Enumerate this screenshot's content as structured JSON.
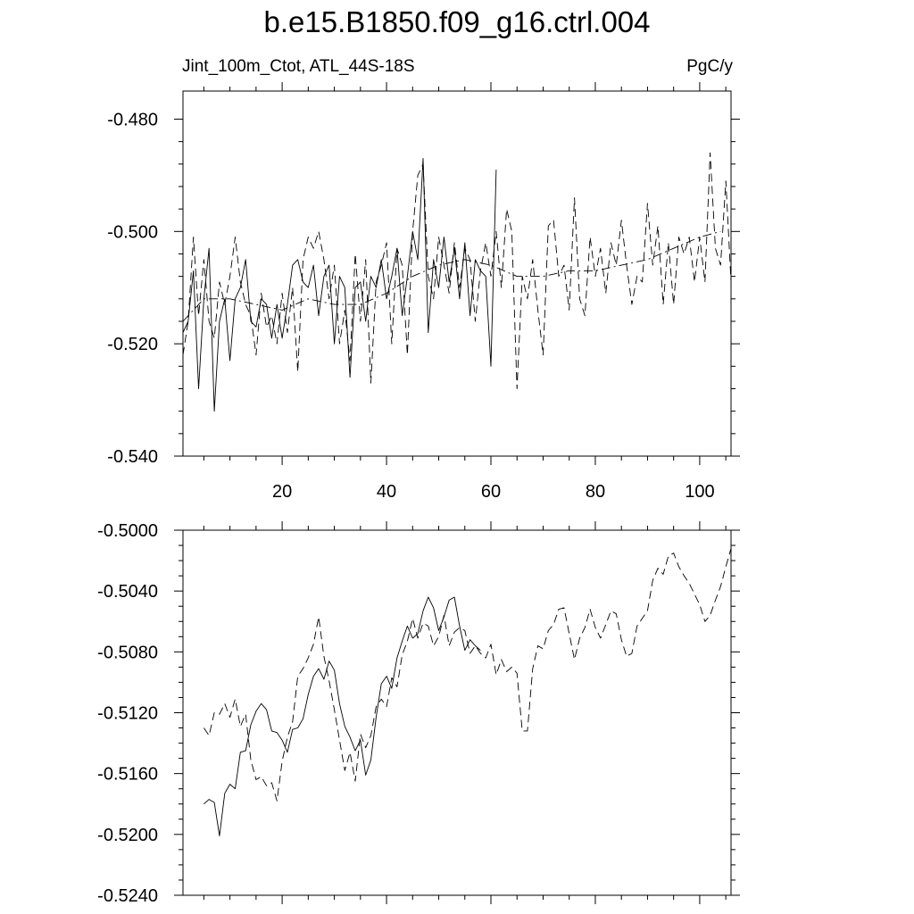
{
  "title": "b.e15.B1850.f09_g16.ctrl.004",
  "subtitle_left": "Jint_100m_Ctot, ATL_44S-18S",
  "subtitle_right": "PgC/y",
  "chart_data": [
    {
      "type": "line",
      "panel": "top",
      "xlim": [
        1,
        106
      ],
      "ylim": [
        -0.54,
        -0.475
      ],
      "xticks": [
        20,
        40,
        60,
        80,
        100
      ],
      "xtick_labels": [
        "20",
        "40",
        "60",
        "80",
        "100"
      ],
      "yticks": [
        -0.54,
        -0.52,
        -0.5,
        -0.48
      ],
      "ytick_labels": [
        "-0.540",
        "-0.520",
        "-0.500",
        "-0.480"
      ],
      "grid": false,
      "series": [
        {
          "style": "solid",
          "x": [
            1,
            2,
            3,
            4,
            5,
            6,
            7,
            8,
            9,
            10,
            11,
            12,
            13,
            14,
            15,
            16,
            17,
            18,
            19,
            20,
            21,
            22,
            23,
            24,
            25,
            26,
            27,
            28,
            29,
            30,
            31,
            32,
            33,
            34,
            35,
            36,
            37,
            38,
            39,
            40,
            41,
            42,
            43,
            44,
            45,
            46,
            47,
            48,
            49,
            50,
            51,
            52,
            53,
            54,
            55,
            56,
            57,
            58,
            59,
            60,
            61
          ],
          "y": [
            -0.518,
            -0.516,
            -0.507,
            -0.528,
            -0.512,
            -0.503,
            -0.532,
            -0.516,
            -0.512,
            -0.523,
            -0.512,
            -0.51,
            -0.505,
            -0.516,
            -0.517,
            -0.512,
            -0.513,
            -0.519,
            -0.513,
            -0.519,
            -0.513,
            -0.506,
            -0.505,
            -0.509,
            -0.51,
            -0.506,
            -0.515,
            -0.508,
            -0.506,
            -0.52,
            -0.508,
            -0.51,
            -0.526,
            -0.51,
            -0.509,
            -0.516,
            -0.508,
            -0.51,
            -0.505,
            -0.512,
            -0.508,
            -0.503,
            -0.515,
            -0.508,
            -0.5,
            -0.505,
            -0.487,
            -0.518,
            -0.505,
            -0.51,
            -0.501,
            -0.509,
            -0.503,
            -0.512,
            -0.502,
            -0.515,
            -0.505,
            -0.507,
            -0.508,
            -0.524,
            -0.489
          ]
        },
        {
          "style": "dashed",
          "x": [
            1,
            2,
            3,
            4,
            5,
            6,
            7,
            8,
            9,
            10,
            11,
            12,
            13,
            14,
            15,
            16,
            17,
            18,
            19,
            20,
            21,
            22,
            23,
            24,
            25,
            26,
            27,
            28,
            29,
            30,
            31,
            32,
            33,
            34,
            35,
            36,
            37,
            38,
            39,
            40,
            41,
            42,
            43,
            44,
            45,
            46,
            47,
            48,
            49,
            50,
            51,
            52,
            53,
            54,
            55,
            56,
            57,
            58,
            59,
            60,
            61,
            62,
            63,
            64,
            65,
            66,
            67,
            68,
            69,
            70,
            71,
            72,
            73,
            74,
            75,
            76,
            77,
            78,
            79,
            80,
            81,
            82,
            83,
            84,
            85,
            86,
            87,
            88,
            89,
            90,
            91,
            92,
            93,
            94,
            95,
            96,
            97,
            98,
            99,
            100,
            101,
            102,
            103,
            104,
            105,
            106
          ],
          "y": [
            -0.522,
            -0.516,
            -0.501,
            -0.515,
            -0.505,
            -0.516,
            -0.519,
            -0.509,
            -0.513,
            -0.508,
            -0.501,
            -0.509,
            -0.513,
            -0.515,
            -0.522,
            -0.511,
            -0.517,
            -0.515,
            -0.52,
            -0.511,
            -0.518,
            -0.51,
            -0.525,
            -0.505,
            -0.501,
            -0.503,
            -0.5,
            -0.505,
            -0.512,
            -0.506,
            -0.52,
            -0.514,
            -0.523,
            -0.504,
            -0.516,
            -0.505,
            -0.527,
            -0.509,
            -0.506,
            -0.502,
            -0.52,
            -0.503,
            -0.506,
            -0.522,
            -0.5,
            -0.49,
            -0.488,
            -0.508,
            -0.512,
            -0.501,
            -0.506,
            -0.511,
            -0.502,
            -0.51,
            -0.503,
            -0.505,
            -0.516,
            -0.507,
            -0.502,
            -0.508,
            -0.5,
            -0.51,
            -0.496,
            -0.5,
            -0.528,
            -0.508,
            -0.512,
            -0.505,
            -0.514,
            -0.522,
            -0.499,
            -0.498,
            -0.508,
            -0.506,
            -0.514,
            -0.494,
            -0.512,
            -0.515,
            -0.501,
            -0.508,
            -0.503,
            -0.511,
            -0.502,
            -0.506,
            -0.498,
            -0.506,
            -0.513,
            -0.508,
            -0.509,
            -0.495,
            -0.506,
            -0.499,
            -0.513,
            -0.502,
            -0.513,
            -0.501,
            -0.504,
            -0.501,
            -0.509,
            -0.501,
            -0.509,
            -0.486,
            -0.503,
            -0.506,
            -0.491,
            -0.509
          ]
        },
        {
          "style": "dash-dot",
          "x": [
            1,
            5,
            10,
            15,
            20,
            25,
            30,
            35,
            40,
            45,
            50,
            55,
            60,
            65,
            70,
            75,
            80,
            85,
            90,
            95,
            100,
            104
          ],
          "y": [
            -0.516,
            -0.512,
            -0.512,
            -0.513,
            -0.514,
            -0.512,
            -0.513,
            -0.513,
            -0.511,
            -0.508,
            -0.506,
            -0.505,
            -0.506,
            -0.508,
            -0.508,
            -0.507,
            -0.507,
            -0.506,
            -0.505,
            -0.503,
            -0.501,
            -0.5
          ]
        }
      ]
    },
    {
      "type": "line",
      "panel": "bottom",
      "xlim": [
        1,
        106
      ],
      "ylim": [
        -0.524,
        -0.5
      ],
      "xticks": [
        20,
        40,
        60,
        80,
        100
      ],
      "xtick_labels": [],
      "yticks": [
        -0.524,
        -0.52,
        -0.516,
        -0.512,
        -0.508,
        -0.504,
        -0.5
      ],
      "ytick_labels": [
        "-0.5240",
        "-0.5200",
        "-0.5160",
        "-0.5120",
        "-0.5080",
        "-0.5040",
        "-0.5000"
      ],
      "grid": false,
      "series": [
        {
          "style": "solid",
          "x": [
            5,
            6,
            7,
            8,
            9,
            10,
            11,
            12,
            13,
            14,
            15,
            16,
            17,
            18,
            19,
            20,
            21,
            22,
            23,
            24,
            25,
            26,
            27,
            28,
            29,
            30,
            31,
            32,
            33,
            34,
            35,
            36,
            37,
            38,
            39,
            40,
            41,
            42,
            43,
            44,
            45,
            46,
            47,
            48,
            49,
            50,
            51,
            52,
            53,
            54,
            55,
            56,
            57,
            58
          ],
          "y": [
            -0.518,
            -0.5177,
            -0.5179,
            -0.5201,
            -0.5173,
            -0.5167,
            -0.517,
            -0.5146,
            -0.5145,
            -0.5128,
            -0.5119,
            -0.5114,
            -0.5118,
            -0.5132,
            -0.5133,
            -0.5138,
            -0.5146,
            -0.5131,
            -0.513,
            -0.5124,
            -0.5108,
            -0.5096,
            -0.5091,
            -0.5098,
            -0.5086,
            -0.5092,
            -0.5114,
            -0.5129,
            -0.5136,
            -0.5145,
            -0.5138,
            -0.5161,
            -0.5151,
            -0.5123,
            -0.5101,
            -0.5096,
            -0.5104,
            -0.5084,
            -0.5073,
            -0.5063,
            -0.5071,
            -0.5068,
            -0.5053,
            -0.5044,
            -0.5051,
            -0.5066,
            -0.5057,
            -0.5046,
            -0.5044,
            -0.5063,
            -0.5079,
            -0.5072,
            -0.5076,
            -0.5079
          ]
        },
        {
          "style": "dashed",
          "x": [
            5,
            6,
            7,
            8,
            9,
            10,
            11,
            12,
            13,
            14,
            15,
            16,
            17,
            18,
            19,
            20,
            21,
            22,
            23,
            24,
            25,
            26,
            27,
            28,
            29,
            30,
            31,
            32,
            33,
            34,
            35,
            36,
            37,
            38,
            39,
            40,
            41,
            42,
            43,
            44,
            45,
            46,
            47,
            48,
            49,
            50,
            51,
            52,
            53,
            54,
            55,
            56,
            57,
            58,
            59,
            60,
            61,
            62,
            63,
            64,
            65,
            66,
            67,
            68,
            69,
            70,
            71,
            72,
            73,
            74,
            75,
            76,
            77,
            78,
            79,
            80,
            81,
            82,
            83,
            84,
            85,
            86,
            87,
            88,
            89,
            90,
            91,
            92,
            93,
            94,
            95,
            96,
            97,
            98,
            99,
            100,
            101,
            102,
            103,
            104,
            105,
            106
          ],
          "y": [
            -0.513,
            -0.5135,
            -0.512,
            -0.5121,
            -0.5114,
            -0.5123,
            -0.5111,
            -0.5129,
            -0.5121,
            -0.5151,
            -0.5164,
            -0.5162,
            -0.5168,
            -0.5166,
            -0.5178,
            -0.5152,
            -0.5136,
            -0.5126,
            -0.5096,
            -0.5091,
            -0.5084,
            -0.5075,
            -0.5057,
            -0.5083,
            -0.5099,
            -0.5118,
            -0.5138,
            -0.5158,
            -0.5146,
            -0.5165,
            -0.5134,
            -0.5143,
            -0.5135,
            -0.5116,
            -0.5111,
            -0.5116,
            -0.5097,
            -0.5103,
            -0.5082,
            -0.5073,
            -0.5058,
            -0.5071,
            -0.5061,
            -0.5063,
            -0.5076,
            -0.507,
            -0.5056,
            -0.5076,
            -0.5067,
            -0.5064,
            -0.5066,
            -0.5081,
            -0.5076,
            -0.5081,
            -0.5084,
            -0.5075,
            -0.5095,
            -0.5085,
            -0.5093,
            -0.509,
            -0.5094,
            -0.5132,
            -0.5132,
            -0.5091,
            -0.5076,
            -0.5078,
            -0.5066,
            -0.5062,
            -0.5052,
            -0.5051,
            -0.5068,
            -0.5085,
            -0.5071,
            -0.5064,
            -0.5052,
            -0.5064,
            -0.5071,
            -0.5062,
            -0.5053,
            -0.5055,
            -0.5072,
            -0.5083,
            -0.5081,
            -0.5063,
            -0.5058,
            -0.5053,
            -0.5033,
            -0.5025,
            -0.5029,
            -0.5017,
            -0.5015,
            -0.5024,
            -0.503,
            -0.5035,
            -0.5042,
            -0.5049,
            -0.506,
            -0.5056,
            -0.5046,
            -0.5037,
            -0.5024,
            -0.5012
          ]
        }
      ]
    }
  ]
}
